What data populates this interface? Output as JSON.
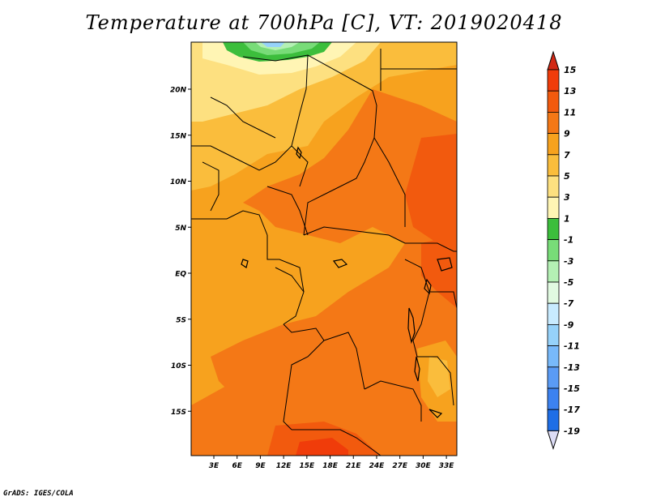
{
  "title": "Temperature at 700hPa [C], VT: 2019020418",
  "credit": "GrADS: IGES/COLA",
  "map": {
    "lat_ticks": [
      {
        "label": "20N",
        "lat": 20
      },
      {
        "label": "15N",
        "lat": 15
      },
      {
        "label": "10N",
        "lat": 10
      },
      {
        "label": "5N",
        "lat": 5
      },
      {
        "label": "EQ",
        "lat": 0
      },
      {
        "label": "5S",
        "lat": -5
      },
      {
        "label": "10S",
        "lat": -10
      },
      {
        "label": "15S",
        "lat": -15
      }
    ],
    "lon_ticks": [
      {
        "label": "3E",
        "lon": 3
      },
      {
        "label": "6E",
        "lon": 6
      },
      {
        "label": "9E",
        "lon": 9
      },
      {
        "label": "12E",
        "lon": 12
      },
      {
        "label": "15E",
        "lon": 15
      },
      {
        "label": "18E",
        "lon": 18
      },
      {
        "label": "21E",
        "lon": 21
      },
      {
        "label": "24E",
        "lon": 24
      },
      {
        "label": "27E",
        "lon": 27
      },
      {
        "label": "30E",
        "lon": 30
      },
      {
        "label": "33E",
        "lon": 33
      }
    ]
  },
  "colorbar": {
    "levels": [
      {
        "label": "15",
        "color": "#f03c0a"
      },
      {
        "label": "13",
        "color": "#f25a0e"
      },
      {
        "label": "11",
        "color": "#f47816"
      },
      {
        "label": "9",
        "color": "#f7a21e"
      },
      {
        "label": "7",
        "color": "#fabd3c"
      },
      {
        "label": "5",
        "color": "#fde080"
      },
      {
        "label": "3",
        "color": "#fff5b4"
      },
      {
        "label": "1",
        "color": "#3cbe3c"
      },
      {
        "label": "-1",
        "color": "#78dc78"
      },
      {
        "label": "-3",
        "color": "#b4f0b4"
      },
      {
        "label": "-5",
        "color": "#e1fae1"
      },
      {
        "label": "-7",
        "color": "#c8ebff"
      },
      {
        "label": "-9",
        "color": "#96d2fa"
      },
      {
        "label": "-11",
        "color": "#78b9fa"
      },
      {
        "label": "-13",
        "color": "#5a9bf5"
      },
      {
        "label": "-15",
        "color": "#3c82f0"
      },
      {
        "label": "-17",
        "color": "#1e6ee6"
      },
      {
        "label": "-19",
        "color": "#1450c8"
      }
    ],
    "top_color": "#d22814",
    "bottom_color": "#0a1e78",
    "below_color": "#dcdcf5"
  }
}
